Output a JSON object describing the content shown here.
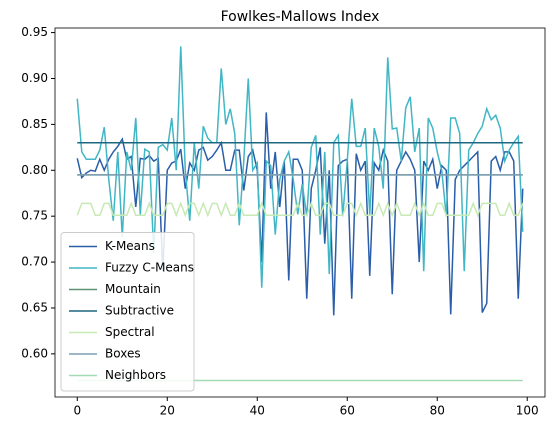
{
  "chart_data": {
    "type": "line",
    "title": "Fowlkes-Mallows Index",
    "x": [
      0,
      1,
      2,
      3,
      4,
      5,
      6,
      7,
      8,
      9,
      10,
      11,
      12,
      13,
      14,
      15,
      16,
      17,
      18,
      19,
      20,
      21,
      22,
      23,
      24,
      25,
      26,
      27,
      28,
      29,
      30,
      31,
      32,
      33,
      34,
      35,
      36,
      37,
      38,
      39,
      40,
      41,
      42,
      43,
      44,
      45,
      46,
      47,
      48,
      49,
      50,
      51,
      52,
      53,
      54,
      55,
      56,
      57,
      58,
      59,
      60,
      61,
      62,
      63,
      64,
      65,
      66,
      67,
      68,
      69,
      70,
      71,
      72,
      73,
      74,
      75,
      76,
      77,
      78,
      79,
      80,
      81,
      82,
      83,
      84,
      85,
      86,
      87,
      88,
      89,
      90,
      91,
      92,
      93,
      94,
      95,
      96,
      97,
      98,
      99
    ],
    "series": [
      {
        "name": "K-Means",
        "color": "#2a5ea8",
        "values": [
          0.813,
          0.792,
          0.797,
          0.8,
          0.799,
          0.812,
          0.8,
          0.812,
          0.82,
          0.826,
          0.834,
          0.812,
          0.815,
          0.76,
          0.813,
          0.812,
          0.816,
          0.81,
          0.813,
          0.69,
          0.8,
          0.808,
          0.81,
          0.823,
          0.78,
          0.808,
          0.8,
          0.822,
          0.825,
          0.811,
          0.815,
          0.822,
          0.83,
          0.8,
          0.8,
          0.822,
          0.822,
          0.778,
          0.815,
          0.822,
          0.8,
          0.7,
          0.863,
          0.78,
          0.82,
          0.76,
          0.81,
          0.68,
          0.812,
          0.812,
          0.8,
          0.66,
          0.78,
          0.8,
          0.825,
          0.72,
          0.8,
          0.642,
          0.805,
          0.81,
          0.812,
          0.66,
          0.818,
          0.8,
          0.81,
          0.685,
          0.808,
          0.8,
          0.822,
          0.81,
          0.665,
          0.8,
          0.81,
          0.82,
          0.812,
          0.8,
          0.7,
          0.81,
          0.8,
          0.812,
          0.78,
          0.805,
          0.8,
          0.643,
          0.79,
          0.8,
          0.805,
          0.81,
          0.815,
          0.82,
          0.645,
          0.655,
          0.81,
          0.815,
          0.8,
          0.82,
          0.82,
          0.81,
          0.66,
          0.78
        ]
      },
      {
        "name": "Fuzzy C-Means",
        "color": "#41b6c4",
        "values": [
          0.878,
          0.82,
          0.812,
          0.812,
          0.812,
          0.822,
          0.847,
          0.79,
          0.745,
          0.82,
          0.727,
          0.82,
          0.8,
          0.857,
          0.752,
          0.823,
          0.82,
          0.71,
          0.825,
          0.828,
          0.822,
          0.857,
          0.8,
          0.935,
          0.8,
          0.745,
          0.83,
          0.78,
          0.848,
          0.835,
          0.83,
          0.83,
          0.911,
          0.85,
          0.867,
          0.84,
          0.74,
          0.81,
          0.9,
          0.8,
          0.808,
          0.672,
          0.81,
          0.805,
          0.73,
          0.79,
          0.81,
          0.82,
          0.79,
          0.752,
          0.785,
          0.75,
          0.825,
          0.838,
          0.73,
          0.82,
          0.687,
          0.83,
          0.838,
          0.75,
          0.81,
          0.878,
          0.826,
          0.826,
          0.846,
          0.752,
          0.846,
          0.826,
          0.78,
          0.923,
          0.845,
          0.846,
          0.81,
          0.868,
          0.88,
          0.82,
          0.846,
          0.69,
          0.857,
          0.846,
          0.82,
          0.8,
          0.75,
          0.857,
          0.857,
          0.84,
          0.69,
          0.822,
          0.83,
          0.84,
          0.848,
          0.867,
          0.855,
          0.86,
          0.846,
          0.81,
          0.822,
          0.83,
          0.837,
          0.733
        ]
      },
      {
        "name": "Mountain",
        "color": "#5f9473",
        "values": [
          0.795,
          0.795,
          0.795,
          0.795,
          0.795,
          0.795,
          0.795,
          0.795,
          0.795,
          0.795,
          0.795,
          0.795,
          0.795,
          0.795,
          0.795,
          0.795,
          0.795,
          0.795,
          0.795,
          0.795,
          0.795,
          0.795,
          0.795,
          0.795,
          0.795,
          0.795,
          0.795,
          0.795,
          0.795,
          0.795,
          0.795,
          0.795,
          0.795,
          0.795,
          0.795,
          0.795,
          0.795,
          0.795,
          0.795,
          0.795,
          0.795,
          0.795,
          0.795,
          0.795,
          0.795,
          0.795,
          0.795,
          0.795,
          0.795,
          0.795,
          0.795,
          0.795,
          0.795,
          0.795,
          0.795,
          0.795,
          0.795,
          0.795,
          0.795,
          0.795,
          0.795,
          0.795,
          0.795,
          0.795,
          0.795,
          0.795,
          0.795,
          0.795,
          0.795,
          0.795,
          0.795,
          0.795,
          0.795,
          0.795,
          0.795,
          0.795,
          0.795,
          0.795,
          0.795,
          0.795,
          0.795,
          0.795,
          0.795,
          0.795,
          0.795,
          0.795,
          0.795,
          0.795,
          0.795,
          0.795,
          0.795,
          0.795,
          0.795,
          0.795,
          0.795,
          0.795,
          0.795,
          0.795,
          0.795,
          0.795
        ]
      },
      {
        "name": "Subtractive",
        "color": "#1d6780",
        "values": [
          0.83,
          0.83,
          0.83,
          0.83,
          0.83,
          0.83,
          0.83,
          0.83,
          0.83,
          0.83,
          0.83,
          0.83,
          0.83,
          0.83,
          0.83,
          0.83,
          0.83,
          0.83,
          0.83,
          0.83,
          0.83,
          0.83,
          0.83,
          0.83,
          0.83,
          0.83,
          0.83,
          0.83,
          0.83,
          0.83,
          0.83,
          0.83,
          0.83,
          0.83,
          0.83,
          0.83,
          0.83,
          0.83,
          0.83,
          0.83,
          0.83,
          0.83,
          0.83,
          0.83,
          0.83,
          0.83,
          0.83,
          0.83,
          0.83,
          0.83,
          0.83,
          0.83,
          0.83,
          0.83,
          0.83,
          0.83,
          0.83,
          0.83,
          0.83,
          0.83,
          0.83,
          0.83,
          0.83,
          0.83,
          0.83,
          0.83,
          0.83,
          0.83,
          0.83,
          0.83,
          0.83,
          0.83,
          0.83,
          0.83,
          0.83,
          0.83,
          0.83,
          0.83,
          0.83,
          0.83,
          0.83,
          0.83,
          0.83,
          0.83,
          0.83,
          0.83,
          0.83,
          0.83,
          0.83,
          0.83,
          0.83,
          0.83,
          0.83,
          0.83,
          0.83,
          0.83,
          0.83,
          0.83,
          0.83,
          0.83
        ]
      },
      {
        "name": "Spectral",
        "color": "#c7e9b4",
        "values": [
          0.751,
          0.764,
          0.764,
          0.764,
          0.751,
          0.751,
          0.764,
          0.764,
          0.751,
          0.751,
          0.751,
          0.751,
          0.764,
          0.751,
          0.751,
          0.751,
          0.764,
          0.751,
          0.751,
          0.751,
          0.764,
          0.764,
          0.751,
          0.764,
          0.751,
          0.764,
          0.764,
          0.751,
          0.764,
          0.751,
          0.764,
          0.764,
          0.751,
          0.764,
          0.751,
          0.751,
          0.764,
          0.751,
          0.751,
          0.751,
          0.751,
          0.764,
          0.751,
          0.751,
          0.751,
          0.751,
          0.751,
          0.751,
          0.751,
          0.764,
          0.751,
          0.751,
          0.764,
          0.751,
          0.751,
          0.764,
          0.764,
          0.751,
          0.751,
          0.751,
          0.764,
          0.764,
          0.751,
          0.764,
          0.751,
          0.751,
          0.751,
          0.764,
          0.751,
          0.764,
          0.751,
          0.764,
          0.751,
          0.751,
          0.751,
          0.764,
          0.751,
          0.764,
          0.751,
          0.751,
          0.764,
          0.764,
          0.751,
          0.751,
          0.751,
          0.751,
          0.751,
          0.751,
          0.764,
          0.751,
          0.764,
          0.764,
          0.764,
          0.764,
          0.751,
          0.751,
          0.764,
          0.751,
          0.751,
          0.764
        ]
      },
      {
        "name": "Boxes",
        "color": "#7f9fb5",
        "values": [
          0.795,
          0.795,
          0.795,
          0.795,
          0.795,
          0.795,
          0.795,
          0.795,
          0.795,
          0.795,
          0.795,
          0.795,
          0.795,
          0.795,
          0.795,
          0.795,
          0.795,
          0.795,
          0.795,
          0.795,
          0.795,
          0.795,
          0.795,
          0.795,
          0.795,
          0.795,
          0.795,
          0.795,
          0.795,
          0.795,
          0.795,
          0.795,
          0.795,
          0.795,
          0.795,
          0.795,
          0.795,
          0.795,
          0.795,
          0.795,
          0.795,
          0.795,
          0.795,
          0.795,
          0.795,
          0.795,
          0.795,
          0.795,
          0.795,
          0.795,
          0.795,
          0.795,
          0.795,
          0.795,
          0.795,
          0.795,
          0.795,
          0.795,
          0.795,
          0.795,
          0.795,
          0.795,
          0.795,
          0.795,
          0.795,
          0.795,
          0.795,
          0.795,
          0.795,
          0.795,
          0.795,
          0.795,
          0.795,
          0.795,
          0.795,
          0.795,
          0.795,
          0.795,
          0.795,
          0.795,
          0.795,
          0.795,
          0.795,
          0.795,
          0.795,
          0.795,
          0.795,
          0.795,
          0.795,
          0.795,
          0.795,
          0.795,
          0.795,
          0.795,
          0.795,
          0.795,
          0.795,
          0.795,
          0.795,
          0.795
        ]
      },
      {
        "name": "Neighbors",
        "color": "#a1dab4",
        "values": [
          0.571,
          0.571,
          0.571,
          0.571,
          0.571,
          0.571,
          0.571,
          0.571,
          0.571,
          0.571,
          0.571,
          0.571,
          0.571,
          0.571,
          0.571,
          0.571,
          0.571,
          0.571,
          0.571,
          0.571,
          0.571,
          0.571,
          0.571,
          0.571,
          0.571,
          0.571,
          0.571,
          0.571,
          0.571,
          0.571,
          0.571,
          0.571,
          0.571,
          0.571,
          0.571,
          0.571,
          0.571,
          0.571,
          0.571,
          0.571,
          0.571,
          0.571,
          0.571,
          0.571,
          0.571,
          0.571,
          0.571,
          0.571,
          0.571,
          0.571,
          0.571,
          0.571,
          0.571,
          0.571,
          0.571,
          0.571,
          0.571,
          0.571,
          0.571,
          0.571,
          0.571,
          0.571,
          0.571,
          0.571,
          0.571,
          0.571,
          0.571,
          0.571,
          0.571,
          0.571,
          0.571,
          0.571,
          0.571,
          0.571,
          0.571,
          0.571,
          0.571,
          0.571,
          0.571,
          0.571,
          0.571,
          0.571,
          0.571,
          0.571,
          0.571,
          0.571,
          0.571,
          0.571,
          0.571,
          0.571,
          0.571,
          0.571,
          0.571,
          0.571,
          0.571,
          0.571,
          0.571,
          0.571,
          0.571,
          0.571
        ]
      }
    ],
    "xlim": [
      -4.95,
      103.95
    ],
    "xticks": [
      0,
      20,
      40,
      60,
      80,
      100
    ],
    "ylim": [
      0.553,
      0.955
    ],
    "yticks": [
      {
        "value": 0.6,
        "label": "0.60"
      },
      {
        "value": 0.65,
        "label": "0.65"
      },
      {
        "value": 0.7,
        "label": "0.70"
      },
      {
        "value": 0.75,
        "label": "0.75"
      },
      {
        "value": 0.8,
        "label": "0.80"
      },
      {
        "value": 0.85,
        "label": "0.85"
      },
      {
        "value": 0.9,
        "label": "0.90"
      },
      {
        "value": 0.95,
        "label": "0.95"
      }
    ],
    "legend": "lower left",
    "grid": false
  }
}
